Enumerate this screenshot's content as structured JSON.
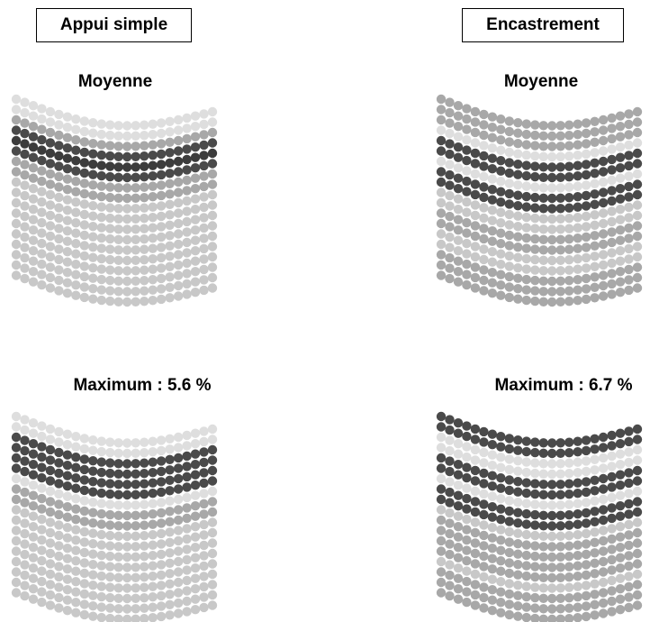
{
  "columns": {
    "left_title": "Appui simple",
    "right_title": "Encastrement"
  },
  "panels": {
    "top_left_label": "Moyenne",
    "top_right_label": "Moyenne",
    "bottom_left_label": "Maximum : 5.6 %",
    "bottom_right_label": "Maximum : 6.7 %"
  },
  "palette": {
    "very_light": "#dedede",
    "light": "#c8c8c8",
    "mid": "#a8a8a8",
    "dark_mid": "#8a8a8a",
    "dark": "#4a4a4a",
    "darkest": "#3c3c3c"
  },
  "bands": {
    "top_left": [
      "very_light",
      "very_light",
      "mid",
      "dark",
      "darkest",
      "dark",
      "mid",
      "mid",
      "light",
      "light",
      "light",
      "light",
      "light",
      "light",
      "light",
      "light",
      "light",
      "light"
    ],
    "top_right": [
      "mid",
      "mid",
      "mid",
      "very_light",
      "dark",
      "dark",
      "very_light",
      "dark",
      "dark",
      "light",
      "light",
      "mid",
      "mid",
      "light",
      "light",
      "mid",
      "mid",
      "mid"
    ],
    "bottom_left": [
      "very_light",
      "very_light",
      "dark",
      "dark",
      "dark",
      "dark",
      "very_light",
      "mid",
      "mid",
      "light",
      "light",
      "light",
      "light",
      "light",
      "light",
      "light",
      "light",
      "light"
    ],
    "bottom_right": [
      "dark",
      "dark",
      "very_light",
      "very_light",
      "dark",
      "dark",
      "very_light",
      "dark",
      "dark",
      "light",
      "mid",
      "mid",
      "mid",
      "mid",
      "light",
      "mid",
      "mid",
      "mid"
    ]
  }
}
